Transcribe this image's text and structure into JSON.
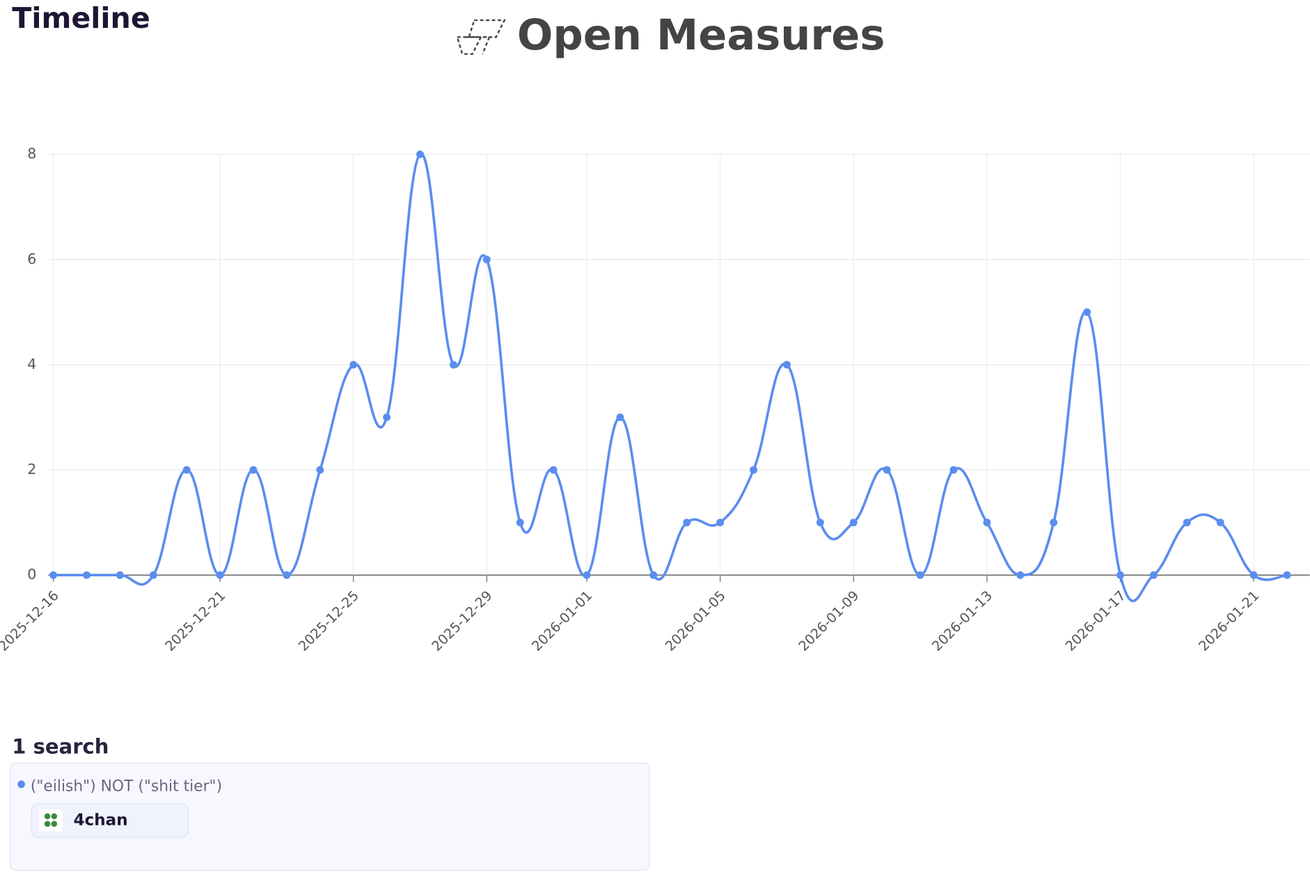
{
  "header": {
    "title": "Timeline",
    "brand": "Open Measures"
  },
  "chart_data": {
    "type": "line",
    "x": [
      "2025-12-16",
      "2025-12-17",
      "2025-12-18",
      "2025-12-19",
      "2025-12-20",
      "2025-12-21",
      "2025-12-22",
      "2025-12-23",
      "2025-12-24",
      "2025-12-25",
      "2025-12-26",
      "2025-12-27",
      "2025-12-28",
      "2025-12-29",
      "2025-12-30",
      "2025-12-31",
      "2026-01-01",
      "2026-01-02",
      "2026-01-03",
      "2026-01-04",
      "2026-01-05",
      "2026-01-06",
      "2026-01-07",
      "2026-01-08",
      "2026-01-09",
      "2026-01-10",
      "2026-01-11",
      "2026-01-12",
      "2026-01-13",
      "2026-01-14",
      "2026-01-15",
      "2026-01-16",
      "2026-01-17",
      "2026-01-18",
      "2026-01-19",
      "2026-01-20",
      "2026-01-21",
      "2026-01-22"
    ],
    "series": [
      {
        "name": "(\"eilish\") NOT (\"shit tier\")",
        "color": "#5b8def",
        "values": [
          0,
          0,
          0,
          0,
          2,
          0,
          2,
          0,
          2,
          4,
          3,
          8,
          4,
          6,
          1,
          2,
          0,
          3,
          0,
          1,
          1,
          2,
          4,
          1,
          1,
          2,
          0,
          2,
          1,
          0,
          1,
          5,
          0,
          0,
          1,
          1,
          0,
          0
        ]
      }
    ],
    "xlim": [
      "2025-12-16",
      "2026-01-22"
    ],
    "xticks": [
      "2025-12-16",
      "2025-12-21",
      "2025-12-25",
      "2025-12-29",
      "2026-01-01",
      "2026-01-05",
      "2026-01-09",
      "2026-01-13",
      "2026-01-17",
      "2026-01-21"
    ],
    "ylim": [
      0,
      8
    ],
    "yticks": [
      0,
      2,
      4,
      6,
      8
    ],
    "grid": true
  },
  "searches": {
    "title": "1 search",
    "items": [
      {
        "query": "(\"eilish\") NOT (\"shit tier\")",
        "source": "4chan"
      }
    ]
  }
}
